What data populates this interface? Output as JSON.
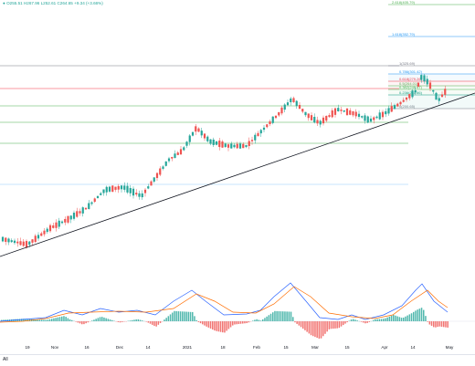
{
  "legend": {
    "symbol_icon": "up-dot-icon",
    "ohlc_text": "O255.51 H267.96 L252.61 C264.65 +9.34 (+3.66%)"
  },
  "range_selector": {
    "all_label": "All"
  },
  "x_axis_labels": [
    "19",
    "Nov",
    "16",
    "Dec",
    "14",
    "2021",
    "18",
    "Feb",
    "15",
    "Mar",
    "15",
    "Apr",
    "14",
    "May"
  ],
  "fib_levels": [
    {
      "label": "2.618(405.79)",
      "color": "#4caf50"
    },
    {
      "label": "1.618(352.79)",
      "color": "#2196f3"
    },
    {
      "label": "1(325.69)",
      "color": "#787b86"
    },
    {
      "label": "0.786(301.42)",
      "color": "#2196f3"
    },
    {
      "label": "0.618(279.26)",
      "color": "#f23645"
    },
    {
      "label": "0.5(264.01)",
      "color": "#4caf50"
    },
    {
      "label": "0.382(249.67)",
      "color": "#4caf50"
    },
    {
      "label": "0.236(231.86)",
      "color": "#089981"
    },
    {
      "label": "0(200.65)",
      "color": "#787b86"
    }
  ],
  "colors": {
    "up": "#26a69a",
    "down": "#ef5350",
    "macd_line": "#2962ff",
    "signal_line": "#ff6d00",
    "trendline": "#131722"
  },
  "chart_data": {
    "type": "candlestick",
    "symbol_change": "+3.66%",
    "last": {
      "open": 255.51,
      "high": 267.96,
      "low": 252.61,
      "close": 264.65,
      "change": 9.34
    },
    "x_ticks": [
      "19",
      "Nov",
      "16",
      "Dec",
      "14",
      "2021",
      "18",
      "Feb",
      "15",
      "Mar",
      "15",
      "Apr",
      "14",
      "May"
    ],
    "fib_retracement": [
      {
        "ratio": 2.618,
        "price": 405.79
      },
      {
        "ratio": 1.618,
        "price": 352.79
      },
      {
        "ratio": 1,
        "price": 325.69
      },
      {
        "ratio": 0.786,
        "price": 301.42
      },
      {
        "ratio": 0.618,
        "price": 279.26
      },
      {
        "ratio": 0.5,
        "price": 264.01
      },
      {
        "ratio": 0.382,
        "price": 249.67
      },
      {
        "ratio": 0.236,
        "price": 231.86
      },
      {
        "ratio": 0,
        "price": 200.65
      }
    ],
    "indicator": "MACD",
    "grid": false
  }
}
